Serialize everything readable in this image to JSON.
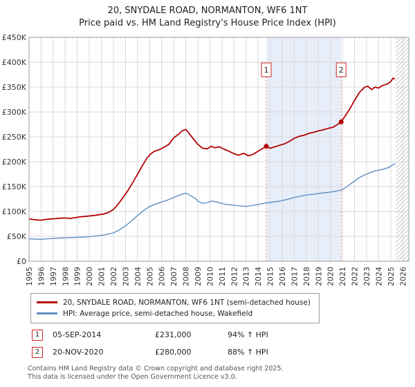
{
  "title": "20, SNYDALE ROAD, NORMANTON, WF6 1NT",
  "subtitle": "Price paid vs. HM Land Registry's House Price Index (HPI)",
  "chart_data": {
    "type": "line",
    "x_range": [
      1995,
      2026.5
    ],
    "y_range": [
      0,
      450000
    ],
    "x_ticks": [
      1995,
      1996,
      1997,
      1998,
      1999,
      2000,
      2001,
      2002,
      2003,
      2004,
      2005,
      2006,
      2007,
      2008,
      2009,
      2010,
      2011,
      2012,
      2013,
      2014,
      2015,
      2016,
      2017,
      2018,
      2019,
      2020,
      2021,
      2022,
      2023,
      2024,
      2025,
      2026
    ],
    "y_ticks": [
      {
        "v": 0,
        "label": "£0"
      },
      {
        "v": 50000,
        "label": "£50K"
      },
      {
        "v": 100000,
        "label": "£100K"
      },
      {
        "v": 150000,
        "label": "£150K"
      },
      {
        "v": 200000,
        "label": "£200K"
      },
      {
        "v": 250000,
        "label": "£250K"
      },
      {
        "v": 300000,
        "label": "£300K"
      },
      {
        "v": 350000,
        "label": "£350K"
      },
      {
        "v": 400000,
        "label": "£400K"
      },
      {
        "v": 450000,
        "label": "£450K"
      }
    ],
    "grid": true,
    "legend_position": "below",
    "colors": {
      "property_line": "#b30000",
      "hpi_line": "#5f8fc0",
      "shade": "#e7eef9",
      "event_line": "#e08080",
      "event_box_border": "#cc2222",
      "gridline": "#d8d8d8",
      "hatch": "#c8c8c8"
    },
    "shaded_region": [
      2014.68,
      2020.89
    ],
    "hatch_region": [
      2025.42,
      2026.5
    ],
    "markers": [
      {
        "label": "1",
        "x": 2014.68,
        "y": 231000
      },
      {
        "label": "2",
        "x": 2020.89,
        "y": 280000
      }
    ],
    "series": [
      {
        "name": "20, SNYDALE ROAD, NORMANTON, WF6 1NT (semi-detached house)",
        "color": "#b30000",
        "points": [
          [
            1995,
            85000
          ],
          [
            1995.3,
            84000
          ],
          [
            1995.6,
            83000
          ],
          [
            1996,
            82500
          ],
          [
            1996.4,
            84000
          ],
          [
            1996.8,
            85000
          ],
          [
            1997.2,
            85500
          ],
          [
            1997.6,
            86500
          ],
          [
            1998,
            87000
          ],
          [
            1998.4,
            86000
          ],
          [
            1998.8,
            87500
          ],
          [
            1999.2,
            89000
          ],
          [
            1999.6,
            90000
          ],
          [
            2000,
            91000
          ],
          [
            2000.4,
            92000
          ],
          [
            2000.8,
            93500
          ],
          [
            2001.2,
            95000
          ],
          [
            2001.6,
            98000
          ],
          [
            2002,
            104000
          ],
          [
            2002.4,
            115000
          ],
          [
            2002.8,
            128000
          ],
          [
            2003.2,
            142000
          ],
          [
            2003.6,
            158000
          ],
          [
            2004,
            175000
          ],
          [
            2004.4,
            192000
          ],
          [
            2004.8,
            208000
          ],
          [
            2005.1,
            216000
          ],
          [
            2005.4,
            221000
          ],
          [
            2005.8,
            224000
          ],
          [
            2006.2,
            229000
          ],
          [
            2006.6,
            235000
          ],
          [
            2007,
            248000
          ],
          [
            2007.4,
            255000
          ],
          [
            2007.7,
            262000
          ],
          [
            2008,
            265000
          ],
          [
            2008.3,
            256000
          ],
          [
            2008.6,
            247000
          ],
          [
            2009,
            235000
          ],
          [
            2009.4,
            227000
          ],
          [
            2009.8,
            226000
          ],
          [
            2010.1,
            231000
          ],
          [
            2010.4,
            228000
          ],
          [
            2010.8,
            230000
          ],
          [
            2011.2,
            225000
          ],
          [
            2011.6,
            221000
          ],
          [
            2012,
            216000
          ],
          [
            2012.4,
            213000
          ],
          [
            2012.8,
            217000
          ],
          [
            2013.2,
            212000
          ],
          [
            2013.6,
            215000
          ],
          [
            2014,
            221000
          ],
          [
            2014.4,
            227000
          ],
          [
            2014.68,
            231000
          ],
          [
            2015,
            227000
          ],
          [
            2015.4,
            230000
          ],
          [
            2015.8,
            233000
          ],
          [
            2016.2,
            236000
          ],
          [
            2016.6,
            241000
          ],
          [
            2017,
            247000
          ],
          [
            2017.4,
            251000
          ],
          [
            2017.8,
            253000
          ],
          [
            2018.2,
            257000
          ],
          [
            2018.6,
            259000
          ],
          [
            2019,
            262000
          ],
          [
            2019.4,
            264000
          ],
          [
            2019.8,
            267000
          ],
          [
            2020.2,
            269000
          ],
          [
            2020.6,
            275000
          ],
          [
            2020.89,
            280000
          ],
          [
            2021.2,
            291000
          ],
          [
            2021.6,
            306000
          ],
          [
            2022,
            323000
          ],
          [
            2022.4,
            339000
          ],
          [
            2022.8,
            349000
          ],
          [
            2023.1,
            352000
          ],
          [
            2023.4,
            345000
          ],
          [
            2023.7,
            350000
          ],
          [
            2024,
            348000
          ],
          [
            2024.3,
            353000
          ],
          [
            2024.7,
            356000
          ],
          [
            2025,
            361000
          ],
          [
            2025.2,
            368000
          ],
          [
            2025.35,
            366000
          ]
        ]
      },
      {
        "name": "HPI: Average price, semi-detached house, Wakefield",
        "color": "#5f8fc0",
        "points": [
          [
            1995,
            45000
          ],
          [
            1995.5,
            44500
          ],
          [
            1996,
            44000
          ],
          [
            1996.5,
            45000
          ],
          [
            1997,
            46000
          ],
          [
            1997.5,
            46500
          ],
          [
            1998,
            47000
          ],
          [
            1998.5,
            47500
          ],
          [
            1999,
            48000
          ],
          [
            1999.5,
            48500
          ],
          [
            2000,
            49500
          ],
          [
            2000.5,
            50500
          ],
          [
            2001,
            52000
          ],
          [
            2001.5,
            54000
          ],
          [
            2002,
            57000
          ],
          [
            2002.5,
            63000
          ],
          [
            2003,
            71000
          ],
          [
            2003.5,
            81000
          ],
          [
            2004,
            92000
          ],
          [
            2004.5,
            102000
          ],
          [
            2005,
            110000
          ],
          [
            2005.5,
            115000
          ],
          [
            2006,
            119000
          ],
          [
            2006.5,
            123000
          ],
          [
            2007,
            128000
          ],
          [
            2007.5,
            133000
          ],
          [
            2008,
            137000
          ],
          [
            2008.4,
            132000
          ],
          [
            2008.8,
            126000
          ],
          [
            2009,
            121000
          ],
          [
            2009.4,
            116000
          ],
          [
            2009.8,
            118000
          ],
          [
            2010.2,
            121000
          ],
          [
            2010.6,
            119000
          ],
          [
            2011,
            116000
          ],
          [
            2011.4,
            114000
          ],
          [
            2011.8,
            113000
          ],
          [
            2012.2,
            112000
          ],
          [
            2012.6,
            111000
          ],
          [
            2013,
            110000
          ],
          [
            2013.4,
            111500
          ],
          [
            2013.8,
            113000
          ],
          [
            2014.2,
            115000
          ],
          [
            2014.68,
            117000
          ],
          [
            2015,
            118000
          ],
          [
            2015.4,
            119500
          ],
          [
            2015.8,
            121000
          ],
          [
            2016.2,
            123000
          ],
          [
            2016.6,
            125500
          ],
          [
            2017,
            128000
          ],
          [
            2017.5,
            130500
          ],
          [
            2018,
            133000
          ],
          [
            2018.5,
            134500
          ],
          [
            2019,
            136000
          ],
          [
            2019.5,
            137500
          ],
          [
            2020,
            139000
          ],
          [
            2020.5,
            141000
          ],
          [
            2020.89,
            143000
          ],
          [
            2021.2,
            147000
          ],
          [
            2021.6,
            154000
          ],
          [
            2022,
            161000
          ],
          [
            2022.4,
            168000
          ],
          [
            2022.8,
            173000
          ],
          [
            2023.2,
            177000
          ],
          [
            2023.6,
            181000
          ],
          [
            2024,
            183000
          ],
          [
            2024.4,
            185000
          ],
          [
            2024.8,
            188000
          ],
          [
            2025,
            191000
          ],
          [
            2025.2,
            194000
          ],
          [
            2025.35,
            196000
          ]
        ]
      }
    ]
  },
  "legend": {
    "items": [
      {
        "label": "20, SNYDALE ROAD, NORMANTON, WF6 1NT (semi-detached house)",
        "color": "#b30000"
      },
      {
        "label": "HPI: Average price, semi-detached house, Wakefield",
        "color": "#5f8fc0"
      }
    ]
  },
  "events": [
    {
      "num": "1",
      "date": "05-SEP-2014",
      "price": "£231,000",
      "hpi": "94% ↑ HPI"
    },
    {
      "num": "2",
      "date": "20-NOV-2020",
      "price": "£280,000",
      "hpi": "88% ↑ HPI"
    }
  ],
  "footer": {
    "line1": "Contains HM Land Registry data © Crown copyright and database right 2025.",
    "line2": "This data is licensed under the Open Government Licence v3.0."
  }
}
